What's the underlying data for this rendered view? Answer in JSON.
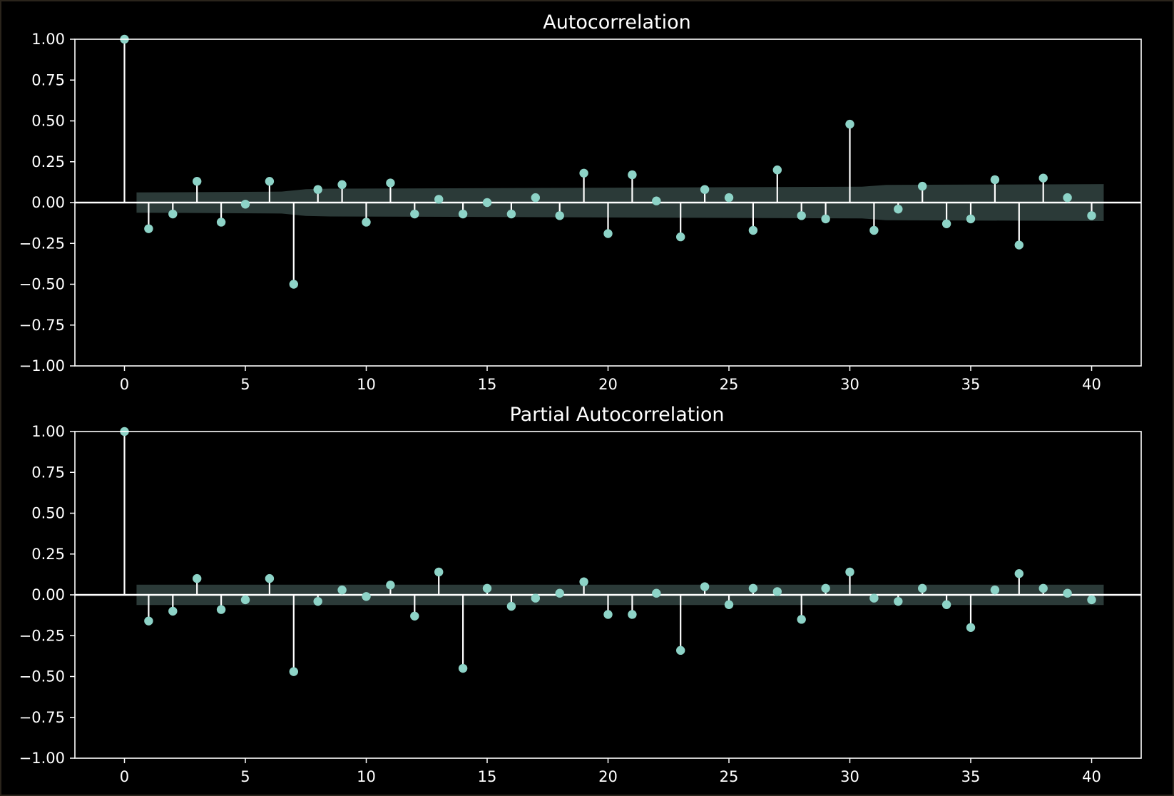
{
  "colors": {
    "background": "#000000",
    "axes": "#ffffff",
    "stem": "#ffffff",
    "marker": "#8dd3c7",
    "confidence_band": "#2b3a38"
  },
  "chart_data": [
    {
      "type": "scatter",
      "title": "Autocorrelation",
      "xlabel": "",
      "ylabel": "",
      "xlim": [
        -2.05,
        42.05
      ],
      "ylim": [
        -1.0,
        1.0
      ],
      "grid": false,
      "x_ticks": [
        "0",
        "5",
        "10",
        "15",
        "20",
        "25",
        "30",
        "35",
        "40"
      ],
      "y_ticks": [
        "1.00",
        "0.75",
        "0.50",
        "0.25",
        "0.00",
        "−0.25",
        "−0.50",
        "−0.75",
        "−1.00"
      ],
      "series": [
        {
          "x": [
            0,
            1,
            2,
            3,
            4,
            5,
            6,
            7,
            8,
            9,
            10,
            11,
            12,
            13,
            14,
            15,
            16,
            17,
            18,
            19,
            20,
            21,
            22,
            23,
            24,
            25,
            26,
            27,
            28,
            29,
            30,
            31,
            32,
            33,
            34,
            35,
            36,
            37,
            38,
            39,
            40
          ],
          "values": [
            1.0,
            -0.16,
            -0.07,
            0.13,
            -0.12,
            -0.01,
            0.13,
            -0.5,
            0.08,
            0.11,
            -0.12,
            0.12,
            -0.07,
            0.02,
            -0.07,
            0.0,
            -0.07,
            0.03,
            -0.08,
            0.18,
            -0.19,
            0.17,
            0.01,
            -0.21,
            0.08,
            0.03,
            -0.17,
            0.2,
            -0.08,
            -0.1,
            0.48,
            -0.17,
            -0.04,
            0.1,
            -0.13,
            -0.1,
            0.14,
            -0.26,
            0.15,
            0.03,
            -0.08
          ]
        }
      ],
      "confidence_band": {
        "x_start": 0.5,
        "x_end": 40.5,
        "points": [
          [
            0.5,
            0.062
          ],
          [
            6.5,
            0.067
          ],
          [
            7.5,
            0.082
          ],
          [
            8.5,
            0.085
          ],
          [
            18.5,
            0.09
          ],
          [
            30.5,
            0.097
          ],
          [
            31.5,
            0.108
          ],
          [
            40.5,
            0.113
          ]
        ]
      }
    },
    {
      "type": "scatter",
      "title": "Partial Autocorrelation",
      "xlabel": "",
      "ylabel": "",
      "xlim": [
        -2.05,
        42.05
      ],
      "ylim": [
        -1.0,
        1.0
      ],
      "grid": false,
      "x_ticks": [
        "0",
        "5",
        "10",
        "15",
        "20",
        "25",
        "30",
        "35",
        "40"
      ],
      "y_ticks": [
        "1.00",
        "0.75",
        "0.50",
        "0.25",
        "0.00",
        "−0.25",
        "−0.50",
        "−0.75",
        "−1.00"
      ],
      "series": [
        {
          "x": [
            0,
            1,
            2,
            3,
            4,
            5,
            6,
            7,
            8,
            9,
            10,
            11,
            12,
            13,
            14,
            15,
            16,
            17,
            18,
            19,
            20,
            21,
            22,
            23,
            24,
            25,
            26,
            27,
            28,
            29,
            30,
            31,
            32,
            33,
            34,
            35,
            36,
            37,
            38,
            39,
            40
          ],
          "values": [
            1.0,
            -0.16,
            -0.1,
            0.1,
            -0.09,
            -0.03,
            0.1,
            -0.47,
            -0.04,
            0.03,
            -0.01,
            0.06,
            -0.13,
            0.14,
            -0.45,
            0.04,
            -0.07,
            -0.02,
            0.01,
            0.08,
            -0.12,
            -0.12,
            0.01,
            -0.34,
            0.05,
            -0.06,
            0.04,
            0.02,
            -0.15,
            0.04,
            0.14,
            -0.02,
            -0.04,
            0.04,
            -0.06,
            -0.2,
            0.03,
            0.13,
            0.04,
            0.01,
            -0.03
          ]
        }
      ],
      "confidence_band": {
        "x_start": 0.5,
        "x_end": 40.5,
        "points": [
          [
            0.5,
            0.062
          ],
          [
            40.5,
            0.062
          ]
        ]
      }
    }
  ]
}
